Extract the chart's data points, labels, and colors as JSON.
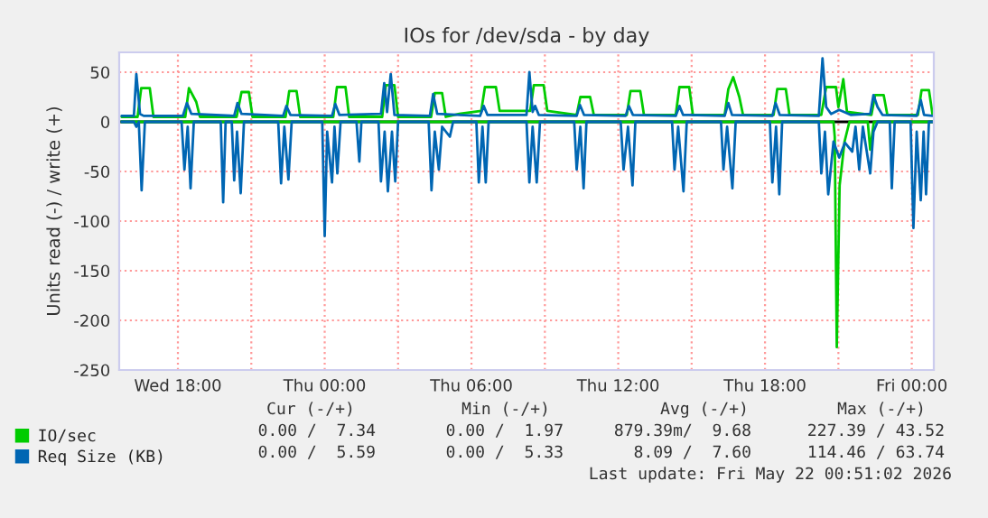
{
  "chart_data": {
    "type": "line",
    "title": "IOs for /dev/sda - by day",
    "ylabel": "Units read (-) / write (+)",
    "xlim": [
      "2026-05-20T15:36",
      "2026-05-22T00:54"
    ],
    "ylim": [
      -250,
      70
    ],
    "xticks": [
      {
        "value": "2026-05-20T18:00",
        "label": "Wed 18:00"
      },
      {
        "value": "2026-05-20T21:00",
        "label": null
      },
      {
        "value": "2026-05-21T00:00",
        "label": "Thu 00:00"
      },
      {
        "value": "2026-05-21T03:00",
        "label": null
      },
      {
        "value": "2026-05-21T06:00",
        "label": "Thu 06:00"
      },
      {
        "value": "2026-05-21T09:00",
        "label": null
      },
      {
        "value": "2026-05-21T12:00",
        "label": "Thu 12:00"
      },
      {
        "value": "2026-05-21T15:00",
        "label": null
      },
      {
        "value": "2026-05-21T18:00",
        "label": "Thu 18:00"
      },
      {
        "value": "2026-05-21T21:00",
        "label": null
      },
      {
        "value": "2026-05-22T00:00",
        "label": "Fri 00:00"
      }
    ],
    "yticks": [
      -250,
      -200,
      -150,
      -100,
      -50,
      0,
      50
    ],
    "grid": true,
    "legend": "bottom left",
    "marker": "none",
    "line_style": "solid",
    "ref_lines": [
      {
        "axis": "y",
        "value": 0,
        "label": null,
        "color": "#000000"
      }
    ],
    "series": [
      {
        "color": "#00cc00",
        "x": [
          "2026-05-20T15:42",
          "2026-05-21T20:48",
          "2026-05-21T20:51",
          "2026-05-21T20:56",
          "2026-05-21T21:03",
          "2026-05-21T21:15",
          "2026-05-21T21:27",
          "2026-05-21T22:12",
          "2026-05-21T22:18",
          "2026-05-21T22:27",
          "2026-05-22T00:51"
        ],
        "values": [
          0,
          0,
          -15,
          -227,
          -64,
          -20,
          0,
          0,
          -28,
          0,
          0
        ]
      },
      {
        "name": "IO/sec",
        "color": "#00cc00",
        "x": [
          "2026-05-20T15:42",
          "2026-05-20T16:21",
          "2026-05-20T16:30",
          "2026-05-20T16:51",
          "2026-05-20T17:00",
          "2026-05-20T18:18",
          "2026-05-20T18:27",
          "2026-05-20T18:45",
          "2026-05-20T18:54",
          "2026-05-20T20:24",
          "2026-05-20T20:36",
          "2026-05-20T20:54",
          "2026-05-20T21:03",
          "2026-05-20T22:24",
          "2026-05-20T22:33",
          "2026-05-20T22:51",
          "2026-05-20T23:00",
          "2026-05-21T00:21",
          "2026-05-21T00:30",
          "2026-05-21T00:51",
          "2026-05-21T01:00",
          "2026-05-21T02:21",
          "2026-05-21T02:30",
          "2026-05-21T02:51",
          "2026-05-21T03:00",
          "2026-05-21T04:21",
          "2026-05-21T04:30",
          "2026-05-21T04:48",
          "2026-05-21T04:57",
          "2026-05-21T05:30",
          "2026-05-21T06:24",
          "2026-05-21T06:33",
          "2026-05-21T07:00",
          "2026-05-21T07:09",
          "2026-05-21T08:24",
          "2026-05-21T08:33",
          "2026-05-21T08:57",
          "2026-05-21T09:06",
          "2026-05-21T10:18",
          "2026-05-21T10:27",
          "2026-05-21T10:51",
          "2026-05-21T11:00",
          "2026-05-21T12:21",
          "2026-05-21T12:30",
          "2026-05-21T12:54",
          "2026-05-21T13:03",
          "2026-05-21T14:21",
          "2026-05-21T14:30",
          "2026-05-21T14:54",
          "2026-05-21T15:03",
          "2026-05-21T16:21",
          "2026-05-21T16:30",
          "2026-05-21T16:42",
          "2026-05-21T16:57",
          "2026-05-21T17:06",
          "2026-05-21T18:21",
          "2026-05-21T18:30",
          "2026-05-21T18:51",
          "2026-05-21T19:00",
          "2026-05-21T20:18",
          "2026-05-21T20:30",
          "2026-05-21T20:54",
          "2026-05-21T21:00",
          "2026-05-21T21:12",
          "2026-05-21T21:21",
          "2026-05-21T22:21",
          "2026-05-21T22:30",
          "2026-05-21T22:51",
          "2026-05-21T23:00",
          "2026-05-22T00:15",
          "2026-05-22T00:24",
          "2026-05-22T00:42",
          "2026-05-22T00:51"
        ],
        "values": [
          5,
          5,
          34,
          34,
          5,
          5,
          34,
          20,
          5,
          5,
          30,
          30,
          5,
          5,
          31,
          31,
          5,
          5,
          35,
          35,
          5,
          5,
          37,
          37,
          5,
          5,
          29,
          29,
          5,
          8,
          11,
          35,
          35,
          11,
          11,
          37,
          37,
          11,
          7,
          25,
          25,
          7,
          7,
          31,
          31,
          7,
          7,
          35,
          35,
          7,
          7,
          33,
          45,
          25,
          7,
          7,
          33,
          33,
          7,
          7,
          35,
          35,
          15,
          43,
          10,
          7,
          27,
          27,
          7,
          7,
          32,
          32,
          7
        ]
      },
      {
        "color": "#0066b3",
        "x": [
          "2026-05-20T15:42",
          "2026-05-20T16:12",
          "2026-05-20T16:18",
          "2026-05-20T16:24",
          "2026-05-20T16:31",
          "2026-05-20T16:39",
          "2026-05-20T18:09",
          "2026-05-20T18:16",
          "2026-05-20T18:24",
          "2026-05-20T18:31",
          "2026-05-20T18:39",
          "2026-05-20T19:45",
          "2026-05-20T19:51",
          "2026-05-20T19:57",
          "2026-05-20T20:12",
          "2026-05-20T20:18",
          "2026-05-20T20:25",
          "2026-05-20T20:34",
          "2026-05-20T20:42",
          "2026-05-20T22:06",
          "2026-05-20T22:13",
          "2026-05-20T22:21",
          "2026-05-20T22:31",
          "2026-05-20T22:39",
          "2026-05-20T23:54",
          "2026-05-21T00:00",
          "2026-05-21T00:06",
          "2026-05-21T00:18",
          "2026-05-21T00:24",
          "2026-05-21T00:31",
          "2026-05-21T00:39",
          "2026-05-21T01:18",
          "2026-05-21T01:25",
          "2026-05-21T01:30",
          "2026-05-21T02:12",
          "2026-05-21T02:18",
          "2026-05-21T02:27",
          "2026-05-21T02:35",
          "2026-05-21T02:45",
          "2026-05-21T02:53",
          "2026-05-21T03:00",
          "2026-05-21T04:15",
          "2026-05-21T04:22",
          "2026-05-21T04:30",
          "2026-05-21T04:40",
          "2026-05-21T04:48",
          "2026-05-21T05:07",
          "2026-05-21T05:15",
          "2026-05-21T06:12",
          "2026-05-21T06:18",
          "2026-05-21T06:27",
          "2026-05-21T06:35",
          "2026-05-21T06:42",
          "2026-05-21T08:15",
          "2026-05-21T08:22",
          "2026-05-21T08:30",
          "2026-05-21T08:40",
          "2026-05-21T08:48",
          "2026-05-21T10:12",
          "2026-05-21T10:18",
          "2026-05-21T10:27",
          "2026-05-21T10:35",
          "2026-05-21T10:42",
          "2026-05-21T12:06",
          "2026-05-21T12:13",
          "2026-05-21T12:24",
          "2026-05-21T12:35",
          "2026-05-21T12:42",
          "2026-05-21T14:12",
          "2026-05-21T14:18",
          "2026-05-21T14:27",
          "2026-05-21T14:40",
          "2026-05-21T14:48",
          "2026-05-21T16:12",
          "2026-05-21T16:18",
          "2026-05-21T16:27",
          "2026-05-21T16:40",
          "2026-05-21T16:48",
          "2026-05-21T18:12",
          "2026-05-21T18:18",
          "2026-05-21T18:27",
          "2026-05-21T18:35",
          "2026-05-21T18:42",
          "2026-05-21T20:12",
          "2026-05-21T20:18",
          "2026-05-21T20:27",
          "2026-05-21T20:35",
          "2026-05-21T20:48",
          "2026-05-21T21:02",
          "2026-05-21T21:16",
          "2026-05-21T21:34",
          "2026-05-21T21:42",
          "2026-05-21T21:51",
          "2026-05-21T22:00",
          "2026-05-21T22:18",
          "2026-05-21T22:26",
          "2026-05-21T22:36",
          "2026-05-21T23:06",
          "2026-05-21T23:11",
          "2026-05-21T23:18",
          "2026-05-21T23:57",
          "2026-05-22T00:04",
          "2026-05-22T00:12",
          "2026-05-22T00:22",
          "2026-05-22T00:29",
          "2026-05-22T00:35",
          "2026-05-22T00:42",
          "2026-05-22T00:51"
        ],
        "values": [
          0,
          0,
          -5,
          0,
          -69,
          0,
          0,
          -48,
          -5,
          -67,
          0,
          0,
          -81,
          0,
          0,
          -59,
          -10,
          -72,
          0,
          0,
          -62,
          -5,
          -58,
          0,
          0,
          -115,
          -10,
          -61,
          -5,
          -52,
          0,
          0,
          -40,
          0,
          0,
          -60,
          -10,
          -70,
          -10,
          -60,
          0,
          0,
          -69,
          -10,
          -48,
          -5,
          -15,
          0,
          0,
          -61,
          -5,
          -61,
          0,
          0,
          -61,
          -5,
          -61,
          0,
          0,
          -48,
          -5,
          -67,
          0,
          0,
          -48,
          -5,
          -64,
          0,
          0,
          -48,
          -5,
          -70,
          0,
          0,
          -48,
          -5,
          -67,
          0,
          0,
          -61,
          -5,
          -73,
          0,
          0,
          -52,
          -10,
          -73,
          -20,
          -36,
          -21,
          -30,
          -5,
          -48,
          -5,
          -52,
          -10,
          0,
          0,
          -67,
          0,
          0,
          -107,
          -10,
          -79,
          -10,
          -73,
          0,
          0
        ]
      },
      {
        "name": "Req Size (KB)",
        "color": "#0066b3",
        "x": [
          "2026-05-20T15:42",
          "2026-05-20T16:12",
          "2026-05-20T16:18",
          "2026-05-20T16:27",
          "2026-05-20T16:36",
          "2026-05-20T18:12",
          "2026-05-20T18:22",
          "2026-05-20T18:33",
          "2026-05-20T20:18",
          "2026-05-20T20:26",
          "2026-05-20T20:36",
          "2026-05-20T22:18",
          "2026-05-20T22:26",
          "2026-05-20T22:36",
          "2026-05-21T00:18",
          "2026-05-21T00:26",
          "2026-05-21T00:36",
          "2026-05-21T02:18",
          "2026-05-21T02:26",
          "2026-05-21T02:33",
          "2026-05-21T02:42",
          "2026-05-21T02:51",
          "2026-05-21T04:18",
          "2026-05-21T04:26",
          "2026-05-21T04:36",
          "2026-05-21T06:21",
          "2026-05-21T06:30",
          "2026-05-21T06:39",
          "2026-05-21T08:15",
          "2026-05-21T08:22",
          "2026-05-21T08:30",
          "2026-05-21T08:36",
          "2026-05-21T08:45",
          "2026-05-21T10:18",
          "2026-05-21T10:26",
          "2026-05-21T10:36",
          "2026-05-21T12:18",
          "2026-05-21T12:26",
          "2026-05-21T12:36",
          "2026-05-21T14:21",
          "2026-05-21T14:30",
          "2026-05-21T14:39",
          "2026-05-21T16:21",
          "2026-05-21T16:30",
          "2026-05-21T16:39",
          "2026-05-21T18:18",
          "2026-05-21T18:26",
          "2026-05-21T18:36",
          "2026-05-21T20:12",
          "2026-05-21T20:21",
          "2026-05-21T20:30",
          "2026-05-21T20:42",
          "2026-05-21T21:02",
          "2026-05-21T21:30",
          "2026-05-21T22:18",
          "2026-05-21T22:26",
          "2026-05-21T22:36",
          "2026-05-21T22:48",
          "2026-05-22T00:12",
          "2026-05-22T00:22",
          "2026-05-22T00:30",
          "2026-05-22T00:51"
        ],
        "values": [
          6,
          6,
          48,
          8,
          6,
          6,
          19,
          8,
          6,
          19,
          8,
          6,
          16,
          7,
          6,
          18,
          7,
          8,
          39,
          10,
          48,
          7,
          6,
          28,
          8,
          6,
          16,
          7,
          7,
          50,
          10,
          16,
          7,
          6,
          17,
          7,
          6,
          16,
          7,
          6,
          16,
          7,
          6,
          19,
          7,
          6,
          19,
          7,
          6,
          64,
          15,
          8,
          12,
          7,
          8,
          27,
          15,
          7,
          6,
          22,
          7,
          6
        ]
      }
    ],
    "annotations": [
      "Cur (-/+)",
      "Min (-/+)",
      "Avg (-/+)",
      "Max (-/+)",
      "0.00 /  7.34",
      "0.00 /  1.97",
      "879.39m/  9.68",
      "227.39 / 43.52",
      "0.00 /  5.59",
      "0.00 /  5.33",
      "8.09 /  7.60",
      "114.46 / 63.74",
      "Last update: Fri May 22 00:51:02 2026"
    ]
  }
}
